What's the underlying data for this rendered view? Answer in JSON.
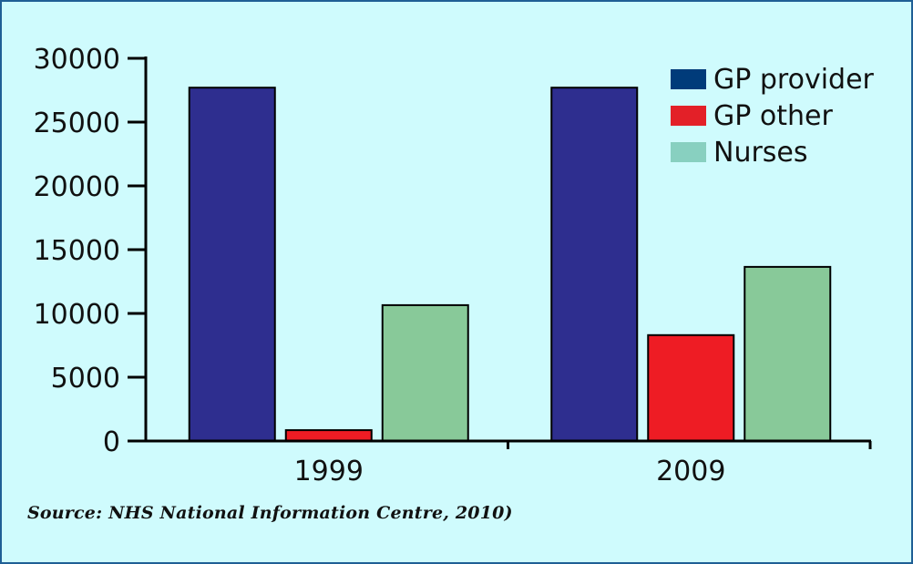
{
  "chart_data": {
    "type": "bar",
    "categories": [
      "1999",
      "2009"
    ],
    "series": [
      {
        "name": "GP provider",
        "values": [
          27700,
          27700
        ],
        "color": "#2e2e8f"
      },
      {
        "name": "GP other",
        "values": [
          850,
          8300
        ],
        "color": "#ee1c24"
      },
      {
        "name": "Nurses",
        "values": [
          10650,
          13650
        ],
        "color": "#88c999"
      }
    ],
    "ylim": [
      0,
      30000
    ],
    "yticks": [
      "0",
      "5000",
      "10000",
      "15000",
      "20000",
      "25000",
      "30000"
    ],
    "legend_placement": "top-right",
    "legend_colors": [
      "#003b7a",
      "#e32028",
      "#88d0c0"
    ],
    "grid": false,
    "title": "",
    "xlabel": "",
    "ylabel": ""
  },
  "source_note": "Source: NHS National Information Centre, 2010)"
}
